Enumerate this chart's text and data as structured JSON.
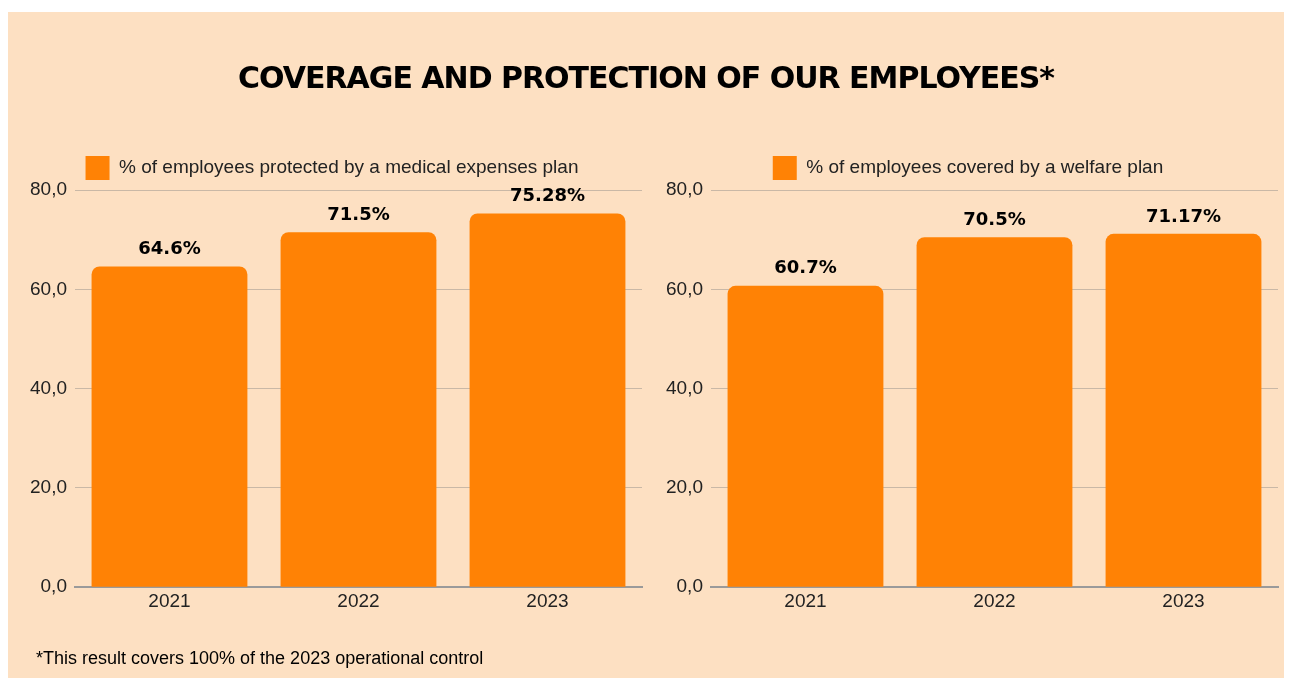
{
  "chart_data": [
    {
      "type": "bar",
      "title": "COVERAGE AND PROTECTION OF OUR EMPLOYEES*",
      "categories": [
        "2021",
        "2022",
        "2023"
      ],
      "series": [
        {
          "name": "% of employees protected by a medical expenses plan",
          "color": "#ff8205",
          "values": [
            64.6,
            71.5,
            75.28
          ],
          "value_labels": [
            "64.6%",
            "71.5%",
            "75.28%"
          ]
        }
      ],
      "ylim": [
        0,
        80
      ],
      "yticks": [
        {
          "value": 0,
          "label": "0,0"
        },
        {
          "value": 20,
          "label": "20,0"
        },
        {
          "value": 40,
          "label": "40,0"
        },
        {
          "value": 60,
          "label": "60,0"
        },
        {
          "value": 80,
          "label": "80,0"
        }
      ],
      "grid": "y",
      "legend": "top",
      "annotations": [
        "*This result covers 100% of the 2023 operational control"
      ]
    },
    {
      "type": "bar",
      "categories": [
        "2021",
        "2022",
        "2023"
      ],
      "series": [
        {
          "name": "% of employees covered by a welfare plan",
          "color": "#ff8205",
          "values": [
            60.7,
            70.5,
            71.17
          ],
          "value_labels": [
            "60.7%",
            "70.5%",
            "71.17%"
          ]
        }
      ],
      "ylim": [
        0,
        80
      ],
      "yticks": [
        {
          "value": 0,
          "label": "0,0"
        },
        {
          "value": 20,
          "label": "20,0"
        },
        {
          "value": 40,
          "label": "40,0"
        },
        {
          "value": 60,
          "label": "60,0"
        },
        {
          "value": 80,
          "label": "80,0"
        }
      ],
      "grid": "y",
      "legend": "top"
    }
  ]
}
